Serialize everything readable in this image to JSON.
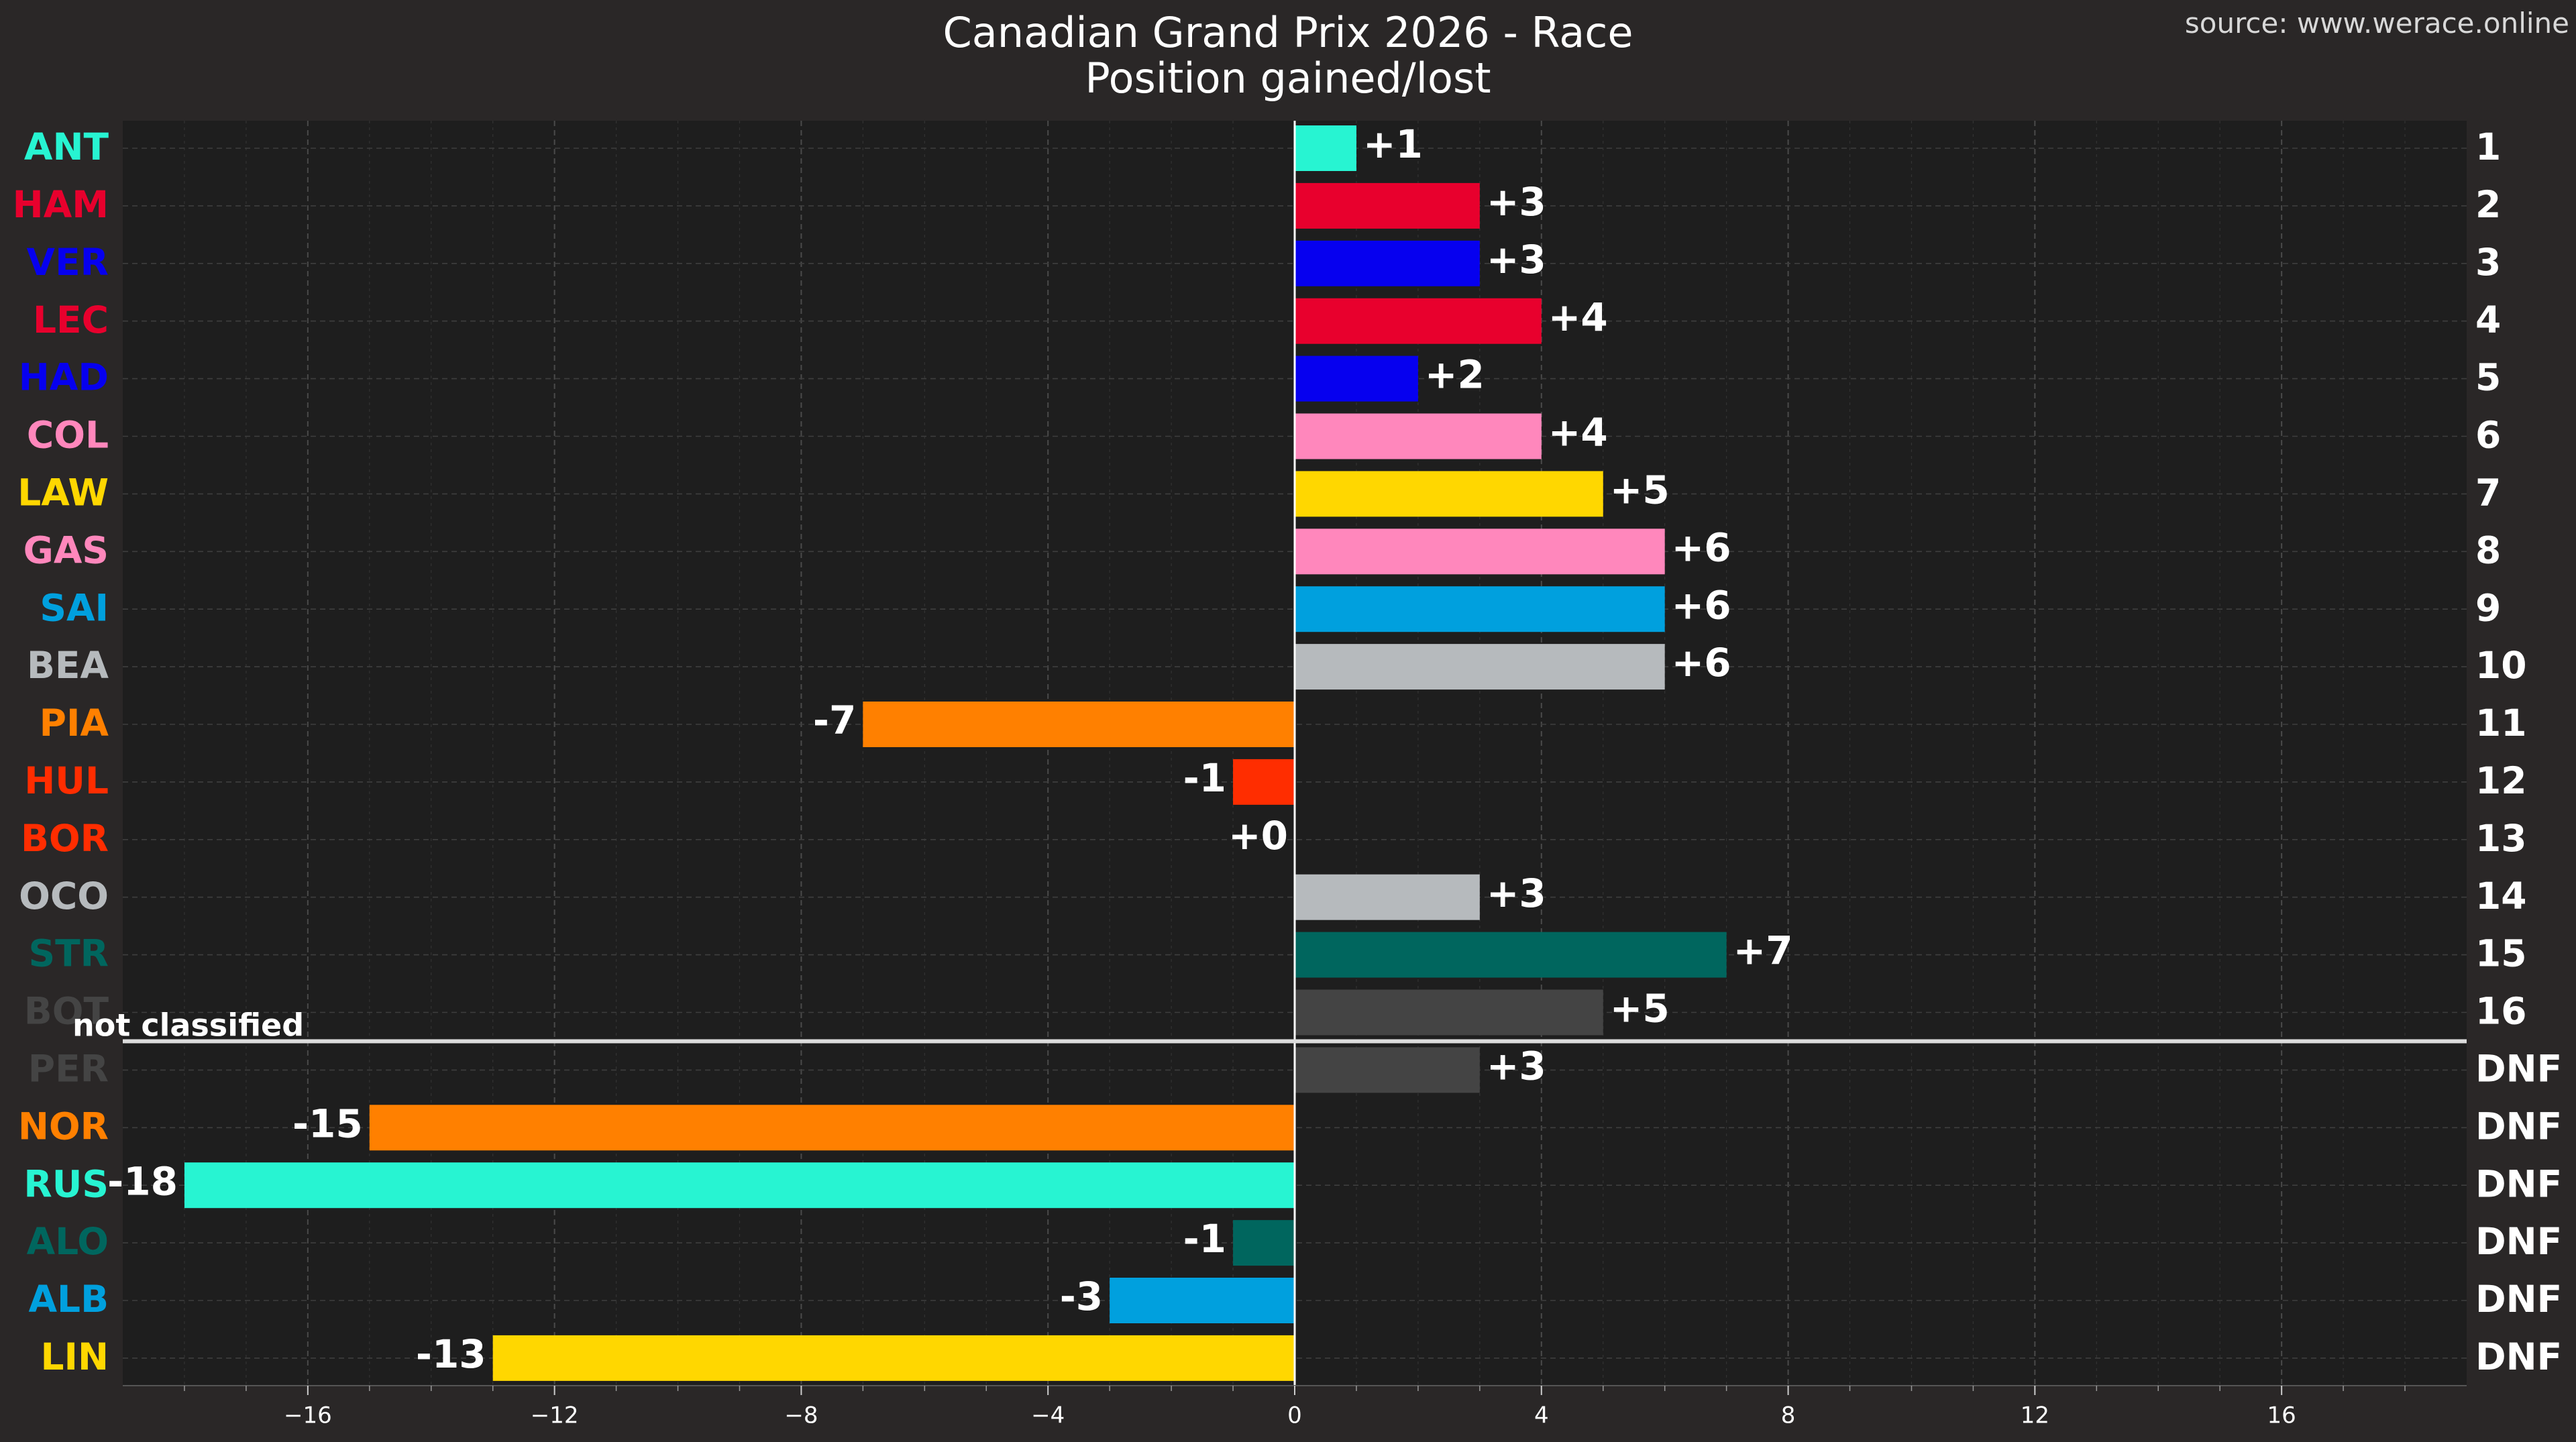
{
  "title": "Canadian Grand Prix 2026 - Race",
  "subtitle": "Position gained/lost",
  "source": "source: www.werace.online",
  "separator_label": "not classified",
  "colors": {
    "background": "#2a2727",
    "plot_background": "#1e1e1e",
    "text": "#ffffff",
    "grid": "#4a4a4a",
    "separator": "#dcdcdc"
  },
  "chart_data": {
    "type": "bar",
    "orientation": "horizontal",
    "title": "Canadian Grand Prix 2026 - Race",
    "subtitle": "Position gained/lost",
    "xlim": [
      -19,
      19
    ],
    "xticks": [
      -16,
      -12,
      -8,
      -4,
      0,
      4,
      8,
      12,
      16
    ],
    "xtick_labels": [
      "−16",
      "−12",
      "−8",
      "−4",
      "0",
      "4",
      "8",
      "12",
      "16"
    ],
    "grid": true,
    "categories": [
      "ANT",
      "HAM",
      "VER",
      "LEC",
      "HAD",
      "COL",
      "LAW",
      "GAS",
      "SAI",
      "BEA",
      "PIA",
      "HUL",
      "BOR",
      "OCO",
      "STR",
      "BOT",
      "PER",
      "NOR",
      "RUS",
      "ALO",
      "ALB",
      "LIN"
    ],
    "values": [
      1,
      3,
      3,
      4,
      2,
      4,
      5,
      6,
      6,
      6,
      -7,
      -1,
      0,
      3,
      7,
      5,
      3,
      -15,
      -18,
      -1,
      -3,
      -13
    ],
    "value_labels": [
      "+1",
      "+3",
      "+3",
      "+4",
      "+2",
      "+4",
      "+5",
      "+6",
      "+6",
      "+6",
      "-7",
      "-1",
      "+0",
      "+3",
      "+7",
      "+5",
      "+3",
      "-15",
      "-18",
      "-1",
      "-3",
      "-13"
    ],
    "finish_positions": [
      "1",
      "2",
      "3",
      "4",
      "5",
      "6",
      "7",
      "8",
      "9",
      "10",
      "11",
      "12",
      "13",
      "14",
      "15",
      "16",
      "DNF",
      "DNF",
      "DNF",
      "DNF",
      "DNF",
      "DNF"
    ],
    "colors": [
      "#27f4d2",
      "#e8002d",
      "#0600ef",
      "#e8002d",
      "#0600ef",
      "#ff87bc",
      "#ffd700",
      "#ff87bc",
      "#00a0de",
      "#b6babd",
      "#ff8000",
      "#ff2d00",
      "#ff2d00",
      "#b6babd",
      "#00665e",
      "#444444",
      "#444444",
      "#ff8000",
      "#27f4d2",
      "#00665e",
      "#00a0de",
      "#ffd700"
    ],
    "classified_count": 16
  }
}
